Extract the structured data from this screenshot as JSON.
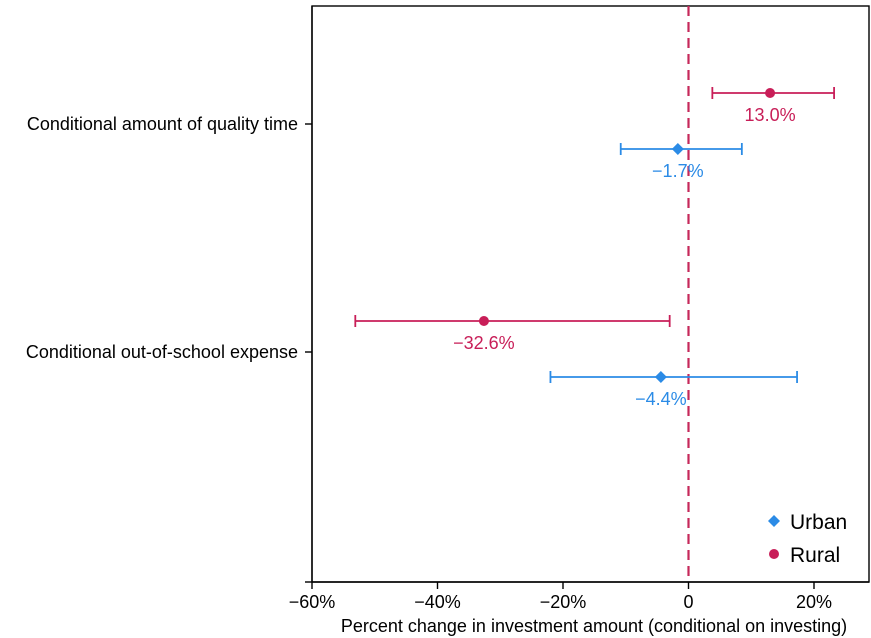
{
  "chart_data": {
    "type": "scatter",
    "subtype": "coefficient-plot-with-error-bars",
    "title": "",
    "xlabel": "Percent change in investment amount (conditional on investing)",
    "ylabel": "",
    "xlim": [
      -60,
      29
    ],
    "x_ticks": [
      -60,
      -40,
      -20,
      0,
      20
    ],
    "x_tick_labels": [
      "−60%",
      "−40%",
      "−20%",
      "0",
      "20%"
    ],
    "categories": [
      "Conditional amount of quality time",
      "Conditional out-of-school expense"
    ],
    "reference_line": {
      "x": 0,
      "style": "dashed",
      "color": "#c6285a"
    },
    "grid": false,
    "legend_position": "bottom-right",
    "series": [
      {
        "name": "Urban",
        "marker": "diamond",
        "color": "#2b8be6",
        "points": [
          {
            "category": "Conditional amount of quality time",
            "estimate": -1.7,
            "ci_low": -10.8,
            "ci_high": 8.5,
            "label": "−1.7%"
          },
          {
            "category": "Conditional out-of-school expense",
            "estimate": -4.4,
            "ci_low": -22.0,
            "ci_high": 17.3,
            "label": "−4.4%"
          }
        ]
      },
      {
        "name": "Rural",
        "marker": "circle",
        "color": "#c81e58",
        "points": [
          {
            "category": "Conditional amount of quality time",
            "estimate": 13.0,
            "ci_low": 3.8,
            "ci_high": 23.2,
            "label": "13.0%"
          },
          {
            "category": "Conditional out-of-school expense",
            "estimate": -32.6,
            "ci_low": -53.1,
            "ci_high": -3.0,
            "label": "−32.6%"
          }
        ]
      }
    ]
  }
}
